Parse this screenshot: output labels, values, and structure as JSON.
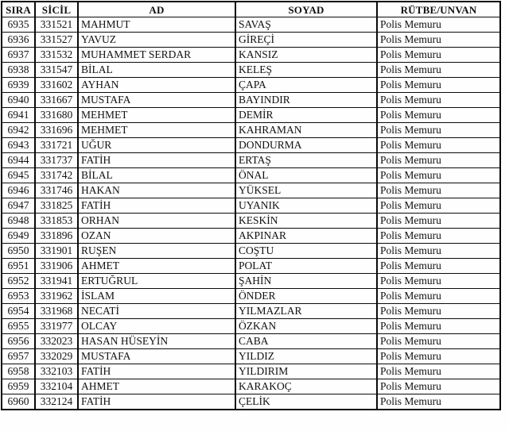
{
  "document": {
    "type": "scanned-personnel-table",
    "rank_value": "Polis Memuru",
    "text_color": "#111111",
    "border_color": "#0a0a0a",
    "background_color": "#fefefe"
  },
  "table": {
    "columns": [
      "SIRA",
      "SİCİL",
      "AD",
      "SOYAD",
      "RÜTBE/UNVAN"
    ],
    "col_names": [
      "cell-sira",
      "cell-sicil",
      "cell-ad",
      "cell-soyad",
      "cell-rutbe-unvan"
    ],
    "rows": [
      [
        "6935",
        "331521",
        "MAHMUT",
        "SAVAŞ",
        "Polis Memuru"
      ],
      [
        "6936",
        "331527",
        "YAVUZ",
        "GİREÇİ",
        "Polis Memuru"
      ],
      [
        "6937",
        "331532",
        "MUHAMMET SERDAR",
        "KANSIZ",
        "Polis Memuru"
      ],
      [
        "6938",
        "331547",
        "BİLAL",
        "KELEŞ",
        "Polis Memuru"
      ],
      [
        "6939",
        "331602",
        "AYHAN",
        "ÇAPA",
        "Polis Memuru"
      ],
      [
        "6940",
        "331667",
        "MUSTAFA",
        "BAYINDIR",
        "Polis Memuru"
      ],
      [
        "6941",
        "331680",
        "MEHMET",
        "DEMİR",
        "Polis Memuru"
      ],
      [
        "6942",
        "331696",
        "MEHMET",
        "KAHRAMAN",
        "Polis Memuru"
      ],
      [
        "6943",
        "331721",
        "UĞUR",
        "DONDURMA",
        "Polis Memuru"
      ],
      [
        "6944",
        "331737",
        "FATİH",
        "ERTAŞ",
        "Polis Memuru"
      ],
      [
        "6945",
        "331742",
        "BİLAL",
        "ÖNAL",
        "Polis Memuru"
      ],
      [
        "6946",
        "331746",
        "HAKAN",
        "YÜKSEL",
        "Polis Memuru"
      ],
      [
        "6947",
        "331825",
        "FATİH",
        "UYANIK",
        "Polis Memuru"
      ],
      [
        "6948",
        "331853",
        "ORHAN",
        "KESKİN",
        "Polis Memuru"
      ],
      [
        "6949",
        "331896",
        "OZAN",
        "AKPINAR",
        "Polis Memuru"
      ],
      [
        "6950",
        "331901",
        "RUŞEN",
        "COŞTU",
        "Polis Memuru"
      ],
      [
        "6951",
        "331906",
        "AHMET",
        "POLAT",
        "Polis Memuru"
      ],
      [
        "6952",
        "331941",
        "ERTUĞRUL",
        "ŞAHİN",
        "Polis Memuru"
      ],
      [
        "6953",
        "331962",
        "İSLAM",
        "ÖNDER",
        "Polis Memuru"
      ],
      [
        "6954",
        "331968",
        "NECATİ",
        "YILMAZLAR",
        "Polis Memuru"
      ],
      [
        "6955",
        "331977",
        "OLCAY",
        "ÖZKAN",
        "Polis Memuru"
      ],
      [
        "6956",
        "332023",
        "HASAN HÜSEYİN",
        "CABA",
        "Polis Memuru"
      ],
      [
        "6957",
        "332029",
        "MUSTAFA",
        "YILDIZ",
        "Polis Memuru"
      ],
      [
        "6958",
        "332103",
        "FATİH",
        "YILDIRIM",
        "Polis Memuru"
      ],
      [
        "6959",
        "332104",
        "AHMET",
        "KARAKOÇ",
        "Polis Memuru"
      ],
      [
        "6960",
        "332124",
        "FATİH",
        "ÇELİK",
        "Polis Memuru"
      ]
    ]
  }
}
